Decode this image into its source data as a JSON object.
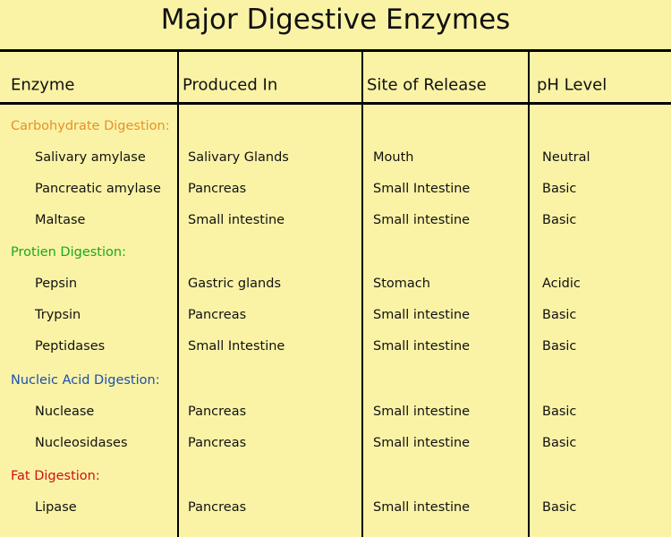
{
  "title": "Major Digestive Enzymes",
  "table": {
    "headers": [
      "Enzyme",
      "Produced In",
      "Site of Release",
      "pH Level"
    ],
    "groups": [
      {
        "label": "Carbohydrate Digestion:",
        "rows": [
          [
            "Salivary amylase",
            "Salivary Glands",
            "Mouth",
            "Neutral"
          ],
          [
            "Pancreatic amylase",
            "Pancreas",
            "Small Intestine",
            "Basic"
          ],
          [
            "Maltase",
            "Small intestine",
            "Small intestine",
            "Basic"
          ]
        ]
      },
      {
        "label": "Protien Digestion:",
        "rows": [
          [
            "Pepsin",
            "Gastric glands",
            "Stomach",
            "Acidic"
          ],
          [
            "Trypsin",
            "Pancreas",
            "Small intestine",
            "Basic"
          ],
          [
            "Peptidases",
            "Small Intestine",
            "Small intestine",
            "Basic"
          ]
        ]
      },
      {
        "label": "Nucleic Acid Digestion:",
        "rows": [
          [
            "Nuclease",
            "Pancreas",
            "Small intestine",
            "Basic"
          ],
          [
            "Nucleosidases",
            "Pancreas",
            "Small intestine",
            "Basic"
          ]
        ]
      },
      {
        "label": "Fat Digestion:",
        "rows": [
          [
            "Lipase",
            "Pancreas",
            "Small intestine",
            "Basic"
          ]
        ]
      }
    ]
  }
}
